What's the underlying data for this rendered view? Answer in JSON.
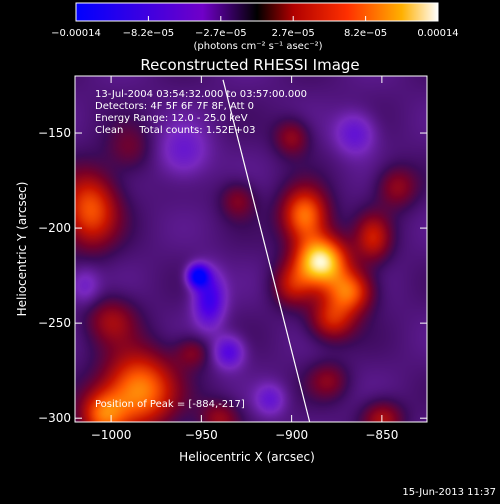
{
  "chart_data": {
    "type": "heatmap",
    "title": "Reconstructed RHESSI Image",
    "xlabel": "Heliocentric X (arcsec)",
    "ylabel": "Heliocentric Y (arcsec)",
    "xlim": [
      -1020,
      -825
    ],
    "ylim": [
      -302,
      -120
    ],
    "x_ticks": [
      -1000,
      -950,
      -900,
      -850
    ],
    "y_ticks": [
      -150,
      -200,
      -250,
      -300
    ],
    "x_tick_labels": [
      "−1000",
      "−950",
      "−900",
      "−850"
    ],
    "y_tick_labels": [
      "−150",
      "−200",
      "−250",
      "−300"
    ],
    "colorbar": {
      "min": -0.00014,
      "max": 0.00014,
      "tick_labels": [
        "−0.00014",
        "−8.2e−05",
        "−2.7e−05",
        "2.7e−05",
        "8.2e−05",
        "0.00014"
      ],
      "unit_label": "(photons cm⁻² s⁻¹ asec⁻²)"
    },
    "annotations": [
      "13-Jul-2004 03:54:32.000 to 03:57:00.000",
      "Detectors: 4F 5F 6F 7F 8F, Att 0",
      "Energy Range: 12.0 - 25.0 keV",
      "Clean     Total counts: 1.52E+03"
    ],
    "peak_label": "Position of Peak = [-884,-217]",
    "peak_position": [
      -884,
      -217
    ],
    "limb_line": [
      [
        -938,
        -122
      ],
      [
        -890,
        -302
      ]
    ],
    "emission_features": [
      {
        "x": -884,
        "y": -217,
        "sx": 10,
        "sy": 9,
        "v": 1.0
      },
      {
        "x": -893,
        "y": -193,
        "sx": 9,
        "sy": 10,
        "v": 0.7
      },
      {
        "x": -868,
        "y": -233,
        "sx": 9,
        "sy": 8,
        "v": 0.62
      },
      {
        "x": -878,
        "y": -248,
        "sx": 9,
        "sy": 8,
        "v": 0.45
      },
      {
        "x": -855,
        "y": -205,
        "sx": 7,
        "sy": 9,
        "v": 0.4
      },
      {
        "x": -842,
        "y": -178,
        "sx": 8,
        "sy": 8,
        "v": 0.3
      },
      {
        "x": -900,
        "y": -230,
        "sx": 8,
        "sy": 8,
        "v": 0.35
      },
      {
        "x": -1012,
        "y": -190,
        "sx": 11,
        "sy": 14,
        "v": 0.6
      },
      {
        "x": -990,
        "y": -158,
        "sx": 9,
        "sy": 9,
        "v": 0.2
      },
      {
        "x": -1000,
        "y": -248,
        "sx": 10,
        "sy": 9,
        "v": 0.3
      },
      {
        "x": -985,
        "y": -285,
        "sx": 14,
        "sy": 14,
        "v": 0.75
      },
      {
        "x": -1005,
        "y": -298,
        "sx": 9,
        "sy": 9,
        "v": 0.55
      },
      {
        "x": -955,
        "y": -265,
        "sx": 7,
        "sy": 6,
        "v": 0.25
      },
      {
        "x": -940,
        "y": -300,
        "sx": 8,
        "sy": 7,
        "v": 0.3
      },
      {
        "x": -900,
        "y": -152,
        "sx": 7,
        "sy": 7,
        "v": 0.3
      },
      {
        "x": -930,
        "y": -185,
        "sx": 7,
        "sy": 7,
        "v": 0.25
      },
      {
        "x": -880,
        "y": -280,
        "sx": 8,
        "sy": 7,
        "v": 0.25
      },
      {
        "x": -850,
        "y": -300,
        "sx": 8,
        "sy": 7,
        "v": 0.35
      },
      {
        "x": -946,
        "y": -237,
        "sx": 6,
        "sy": 10,
        "v": -0.6
      },
      {
        "x": -952,
        "y": -225,
        "sx": 4,
        "sy": 4,
        "v": -1.0
      },
      {
        "x": -935,
        "y": -265,
        "sx": 6,
        "sy": 6,
        "v": -0.45
      },
      {
        "x": -865,
        "y": -150,
        "sx": 8,
        "sy": 8,
        "v": -0.35
      },
      {
        "x": -960,
        "y": -160,
        "sx": 10,
        "sy": 10,
        "v": -0.3
      },
      {
        "x": -912,
        "y": -290,
        "sx": 6,
        "sy": 6,
        "v": -0.3
      },
      {
        "x": -1015,
        "y": -230,
        "sx": 6,
        "sy": 7,
        "v": -0.25
      }
    ]
  },
  "footer": {
    "date": "15-Jun-2013 11:37"
  }
}
